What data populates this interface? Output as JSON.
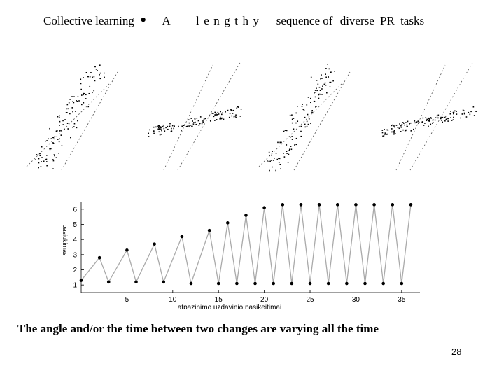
{
  "slide": {
    "title": {
      "part1": "Collective learning",
      "dot": "•",
      "part2": "A",
      "part3": "lengthy",
      "part4": "sequence of",
      "part5": "diverse PR tasks"
    },
    "caption": "The angle and/or the time between two changes are varying all the time",
    "page_number": "28"
  },
  "scatter_panels": {
    "count": 4,
    "orientations": [
      "steep",
      "shallow",
      "steep",
      "shallow"
    ],
    "point_color": "#000000"
  },
  "chart_data": {
    "type": "line",
    "xlabel": "atpazinimo uzdavinio pasikeitimai",
    "ylabel": "pasiukimas",
    "xlim": [
      0,
      37
    ],
    "ylim": [
      0.5,
      6.5
    ],
    "xticks": [
      5,
      10,
      15,
      20,
      25,
      30,
      35
    ],
    "yticks": [
      1,
      2,
      3,
      4,
      5,
      6
    ],
    "line_color": "#aaaaaa",
    "marker_color": "#000000",
    "series": [
      {
        "x": [
          0,
          2,
          3,
          5,
          6,
          8,
          9,
          11,
          12,
          14,
          15,
          16,
          17,
          18,
          19,
          20,
          21,
          22,
          23,
          24,
          25,
          26,
          27,
          28,
          29,
          30,
          31,
          32,
          33,
          34,
          35,
          36
        ],
        "y": [
          1.3,
          2.8,
          1.2,
          3.3,
          1.2,
          3.7,
          1.2,
          4.2,
          1.1,
          4.6,
          1.1,
          5.1,
          1.1,
          5.6,
          1.1,
          6.1,
          1.1,
          6.3,
          1.1,
          6.3,
          1.1,
          6.3,
          1.1,
          6.3,
          1.1,
          6.3,
          1.1,
          6.3,
          1.1,
          6.3,
          1.1,
          6.3
        ]
      }
    ]
  }
}
